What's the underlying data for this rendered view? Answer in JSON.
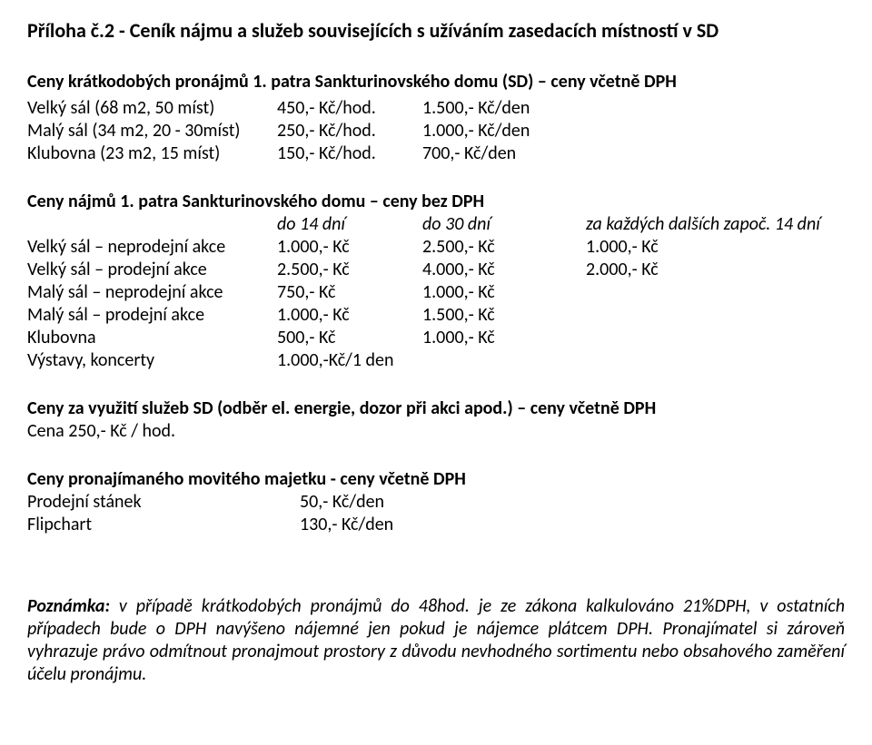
{
  "title": "Příloha č.2 - Ceník nájmu a služeb souvisejících s užíváním zasedacích místností v SD",
  "section1": {
    "heading_bold": "Ceny krátkodobých pronájmů 1. patra Sankturinovského domu (SD)",
    "heading_rest": " – ceny včetně DPH",
    "rows": [
      {
        "label": "Velký sál  (68 m2, 50 míst)",
        "v1": "450,- Kč/hod.",
        "v2": "1.500,- Kč/den"
      },
      {
        "label": "Malý sál (34 m2, 20 - 30míst)",
        "v1": "250,- Kč/hod.",
        "v2": "1.000,- Kč/den"
      },
      {
        "label": "Klubovna (23 m2, 15 míst)",
        "v1": "150,- Kč/hod.",
        "v2": "700,- Kč/den"
      }
    ]
  },
  "section2": {
    "heading_bold": "Ceny nájmů 1. patra Sankturinovského domu",
    "heading_rest": " – ceny bez DPH",
    "head": {
      "c1": "do 14 dní",
      "c2": "do 30 dní",
      "c3": "za každých dalších započ. 14 dní"
    },
    "rows": [
      {
        "label": "Velký sál – neprodejní akce",
        "v1": "1.000,- Kč",
        "v2": "2.500,- Kč",
        "v3": "1.000,- Kč"
      },
      {
        "label": "Velký sál – prodejní akce",
        "v1": "2.500,- Kč",
        "v2": "4.000,- Kč",
        "v3": "2.000,- Kč"
      },
      {
        "label": "Malý sál – neprodejní akce",
        "v1": "750,- Kč",
        "v2": "1.000,- Kč",
        "v3": ""
      },
      {
        "label": "Malý sál – prodejní akce",
        "v1": "1.000,- Kč",
        "v2": "1.500,- Kč",
        "v3": ""
      },
      {
        "label": "Klubovna",
        "v1": "500,- Kč",
        "v2": "1.000,- Kč",
        "v3": ""
      },
      {
        "label": "Výstavy, koncerty",
        "v1": "1.000,-Kč/1 den",
        "v2": "",
        "v3": ""
      }
    ]
  },
  "section3": {
    "heading_bold": "Ceny za využití služeb SD",
    "heading_rest": " (odběr el. energie, dozor při akci apod.) – ceny včetně DPH",
    "line": "Cena 250,- Kč / hod."
  },
  "section4": {
    "heading_bold": "Ceny pronajímaného movitého majetku",
    "heading_rest": "  - ceny včetně DPH",
    "rows": [
      {
        "label": "Prodejní stánek",
        "val": "50,- Kč/den"
      },
      {
        "label": "Flipchart",
        "val": "130,- Kč/den"
      }
    ]
  },
  "note": {
    "lead": "Poznámka:",
    "body": " v případě krátkodobých pronájmů do 48hod. je ze zákona kalkulováno 21%DPH, v ostatních případech bude o DPH navýšeno nájemné jen pokud je nájemce plátcem DPH. Pronajímatel si zároveň vyhrazuje právo odmítnout pronajmout prostory z důvodu nevhodného sortimentu nebo obsahového zaměření účelu pronájmu."
  }
}
